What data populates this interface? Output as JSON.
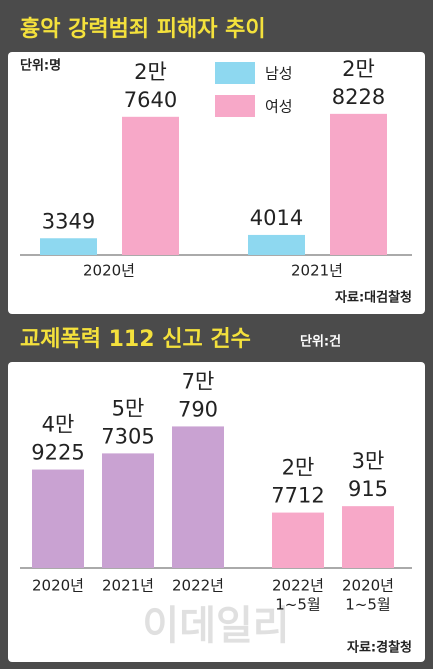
{
  "watermark": "이데일리",
  "chart_data": [
    {
      "type": "bar",
      "title": "흉악 강력범죄 피해자 추이",
      "unit": "단위:명",
      "source": "자료:대검찰청",
      "categories": [
        [
          "2020년"
        ],
        [
          "2021년"
        ]
      ],
      "series": [
        {
          "name": "남성",
          "color": "#8ed8f0",
          "values": [
            3349,
            4014
          ],
          "value_labels": [
            [
              "3349"
            ],
            [
              "4014"
            ]
          ]
        },
        {
          "name": "여성",
          "color": "#f7a8c8",
          "values": [
            27640,
            28228
          ],
          "value_labels": [
            [
              "2만",
              "7640"
            ],
            [
              "2만",
              "8228"
            ]
          ]
        }
      ],
      "ylim": [
        0,
        30000
      ]
    },
    {
      "type": "bar",
      "title": "교제폭력 112 신고 건수",
      "unit": "단위:건",
      "source": "자료:경찰청",
      "categories": [
        [
          "2020년"
        ],
        [
          "2021년"
        ],
        [
          "2022년"
        ],
        [
          "2022년",
          "1~5월"
        ],
        [
          "2020년",
          "1~5월"
        ]
      ],
      "values": [
        49225,
        57305,
        70790,
        27712,
        30915
      ],
      "value_labels": [
        [
          "4만",
          "9225"
        ],
        [
          "5만",
          "7305"
        ],
        [
          "7만",
          "790"
        ],
        [
          "2만",
          "7712"
        ],
        [
          "3만",
          "915"
        ]
      ],
      "colors": [
        "#c9a2d2",
        "#c9a2d2",
        "#c9a2d2",
        "#f7a8c8",
        "#f7a8c8"
      ],
      "ylim": [
        0,
        80000
      ]
    }
  ]
}
